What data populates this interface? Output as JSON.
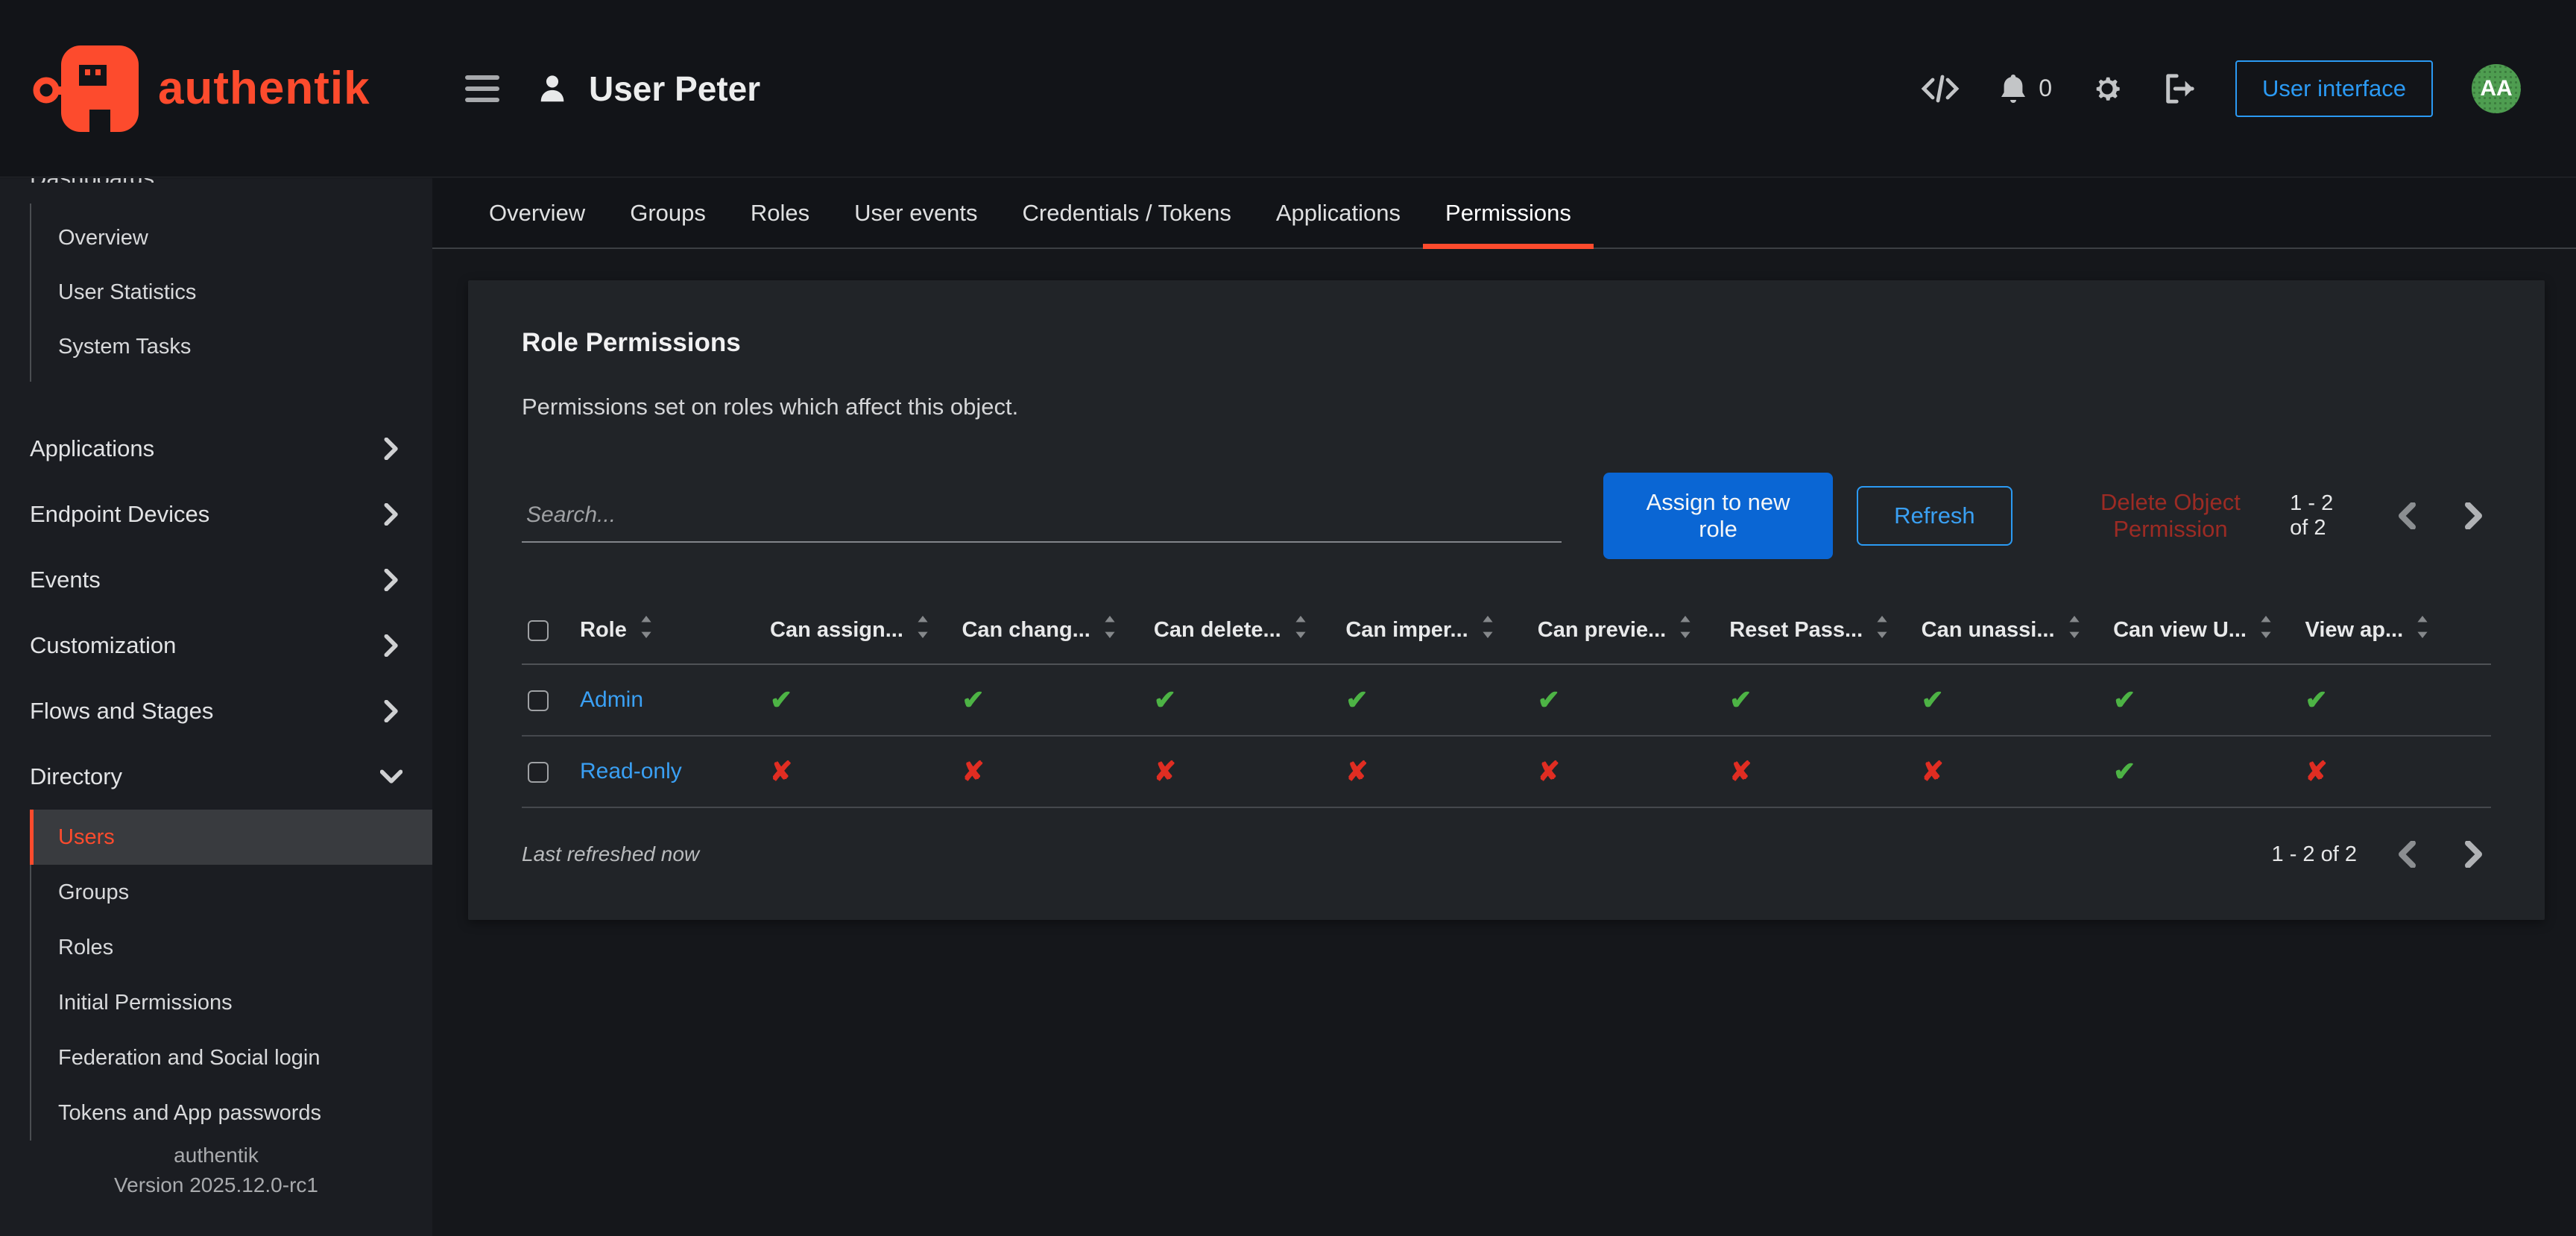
{
  "colors": {
    "brand_orange": "#fd4b2d",
    "primary_blue": "#0a66d4",
    "link_blue": "#3aa0f4",
    "outline_blue": "#2b9af3",
    "success_green": "#4db345",
    "danger_red": "#e02d22",
    "disabled_red": "#9c2b24",
    "avatar_green": "#4e9d50"
  },
  "header": {
    "brand": "authentik",
    "title": "User Peter",
    "notifications_count": "0",
    "user_interface_button": "User interface",
    "avatar_initials": "AA",
    "icons": [
      "code-icon",
      "bell-icon",
      "gear-icon",
      "sign-out-icon"
    ]
  },
  "tabs": {
    "items": [
      "Overview",
      "Groups",
      "Roles",
      "User events",
      "Credentials / Tokens",
      "Applications",
      "Permissions"
    ],
    "active": "Permissions"
  },
  "sidebar": {
    "top_label": "Dashboards",
    "dashboard_items": [
      "Overview",
      "User Statistics",
      "System Tasks"
    ],
    "sections": [
      {
        "label": "Applications",
        "expanded": false
      },
      {
        "label": "Endpoint Devices",
        "expanded": false
      },
      {
        "label": "Events",
        "expanded": false
      },
      {
        "label": "Customization",
        "expanded": false
      },
      {
        "label": "Flows and Stages",
        "expanded": false
      },
      {
        "label": "Directory",
        "expanded": true
      }
    ],
    "directory_items": [
      {
        "label": "Users",
        "selected": true
      },
      {
        "label": "Groups",
        "selected": false
      },
      {
        "label": "Roles",
        "selected": false
      },
      {
        "label": "Initial Permissions",
        "selected": false
      },
      {
        "label": "Federation and Social login",
        "selected": false
      },
      {
        "label": "Tokens and App passwords",
        "selected": false
      }
    ],
    "footer_app": "authentik",
    "footer_version": "Version 2025.12.0-rc1"
  },
  "card": {
    "title": "Role Permissions",
    "description": "Permissions set on roles which affect this object.",
    "toolbar": {
      "search_placeholder": "Search...",
      "assign_button": "Assign to new role",
      "refresh_button": "Refresh",
      "delete_button": "Delete Object Permission",
      "pagination_label": "1 - 2 of 2"
    },
    "table": {
      "columns": [
        "Role",
        "Can assign...",
        "Can chang...",
        "Can delete...",
        "Can imper...",
        "Can previe...",
        "Reset Pass...",
        "Can unassi...",
        "Can view U...",
        "View ap..."
      ],
      "check_glyph": "✔",
      "cross_glyph": "✘",
      "rows": [
        {
          "role": "Admin",
          "permissions": [
            true,
            true,
            true,
            true,
            true,
            true,
            true,
            true,
            true
          ]
        },
        {
          "role": "Read-only",
          "permissions": [
            false,
            false,
            false,
            false,
            false,
            false,
            false,
            true,
            false
          ]
        }
      ]
    },
    "footer": {
      "refreshed_label": "Last refreshed now",
      "pagination_label": "1 - 2 of 2"
    }
  }
}
